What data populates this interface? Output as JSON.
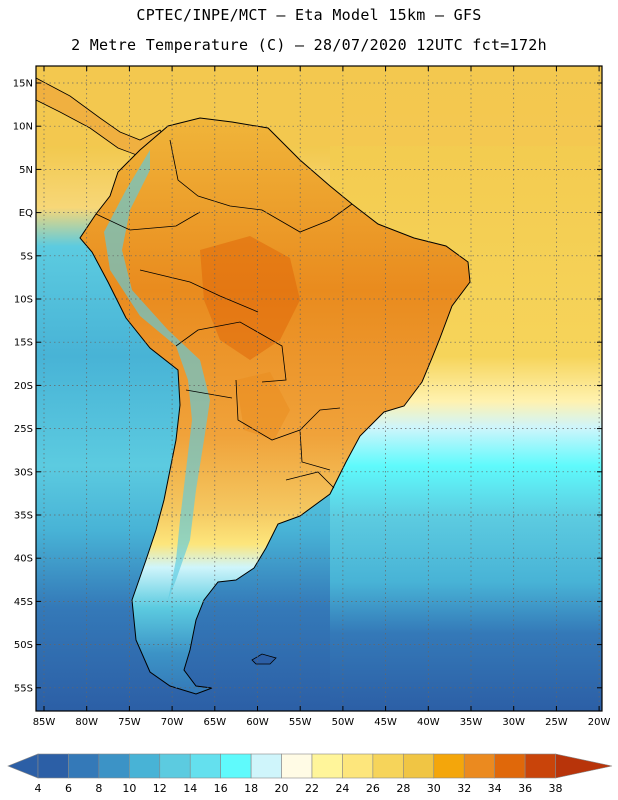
{
  "header": {
    "line1": "CPTEC/INPE/MCT –  Eta Model 15km – GFS",
    "line2": "2 Metre Temperature (C) – 28/07/2020 12UTC fct=172h"
  },
  "map": {
    "lat_labels": [
      "15N",
      "10N",
      "5N",
      "EQ",
      "5S",
      "10S",
      "15S",
      "20S",
      "25S",
      "30S",
      "35S",
      "40S",
      "45S",
      "50S",
      "55S"
    ],
    "lon_labels": [
      "85W",
      "80W",
      "75W",
      "70W",
      "65W",
      "60W",
      "55W",
      "50W",
      "45W",
      "40W",
      "35W",
      "30W",
      "25W",
      "20W"
    ]
  },
  "colorbar": {
    "colors": [
      "#2c5fa6",
      "#3479b8",
      "#3c93c6",
      "#48b3d6",
      "#5ccbe0",
      "#64e0ee",
      "#5ffafc",
      "#cff5fb",
      "#fffbe5",
      "#fff59a",
      "#fde67c",
      "#f6d45a",
      "#f0c544",
      "#f4a60b",
      "#eb8a1f",
      "#e0680a",
      "#c9440a",
      "#b8340a"
    ],
    "labels": [
      "4",
      "6",
      "8",
      "10",
      "12",
      "14",
      "16",
      "18",
      "20",
      "22",
      "24",
      "26",
      "28",
      "30",
      "32",
      "34",
      "36",
      "38"
    ]
  }
}
